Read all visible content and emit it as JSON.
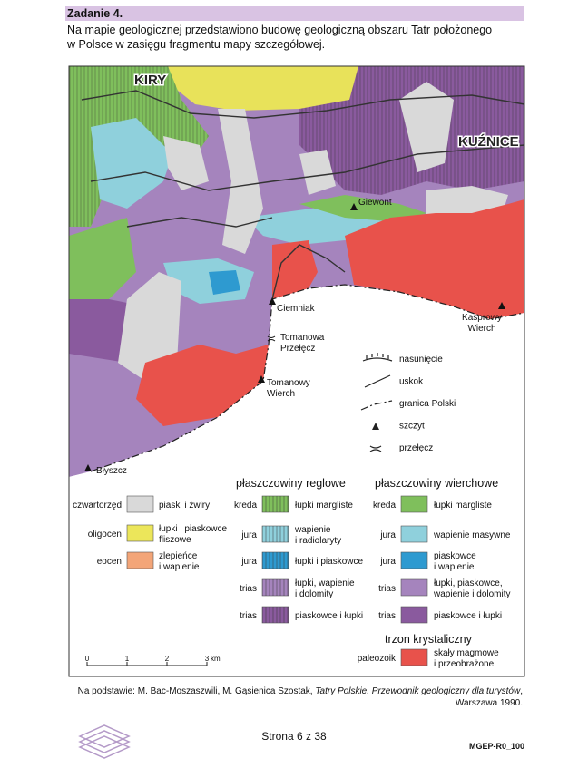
{
  "header": {
    "title": "Zadanie 4.",
    "intro": [
      "Na mapie geologicznej przedstawiono budowę geologiczną obszaru Tatr położonego",
      "w Polsce w zasięgu fragmentu mapy szczegółowej."
    ]
  },
  "map": {
    "places": [
      [
        "KIRY"
      ],
      [
        "KUŹNICE"
      ],
      [
        "Giewont"
      ],
      [
        "Ciemniak"
      ],
      [
        "Kasprowy",
        "Wierch"
      ],
      [
        "Tomanowa",
        "Przełęcz"
      ],
      [
        "Tomanowy",
        "Wierch"
      ],
      [
        "Błyszcz"
      ]
    ],
    "symbols": [
      "nasunięcie",
      "uskok",
      "granica Polski",
      "szczyt",
      "przełęcz"
    ],
    "scale": {
      "ticks": [
        "0",
        "1",
        "2",
        "3"
      ],
      "unit": "km"
    }
  },
  "legend": {
    "deposits": [
      {
        "age": "czwartorzęd",
        "text": [
          "piaski i żwiry"
        ]
      },
      {
        "age": "oligocen",
        "text": [
          "łupki i piaskowce",
          "fliszowe"
        ]
      },
      {
        "age": "eocen",
        "text": [
          "zlepieńce",
          "i wapienie"
        ]
      }
    ],
    "reglowe": {
      "title": "płaszczowiny reglowe",
      "rows": [
        {
          "age": "kreda",
          "text": [
            "łupki margliste"
          ]
        },
        {
          "age": "jura",
          "text": [
            "wapienie",
            "i radiolaryty"
          ]
        },
        {
          "age": "jura",
          "text": [
            "łupki i piaskowce"
          ]
        },
        {
          "age": "trias",
          "text": [
            "łupki, wapienie",
            "i dolomity"
          ]
        },
        {
          "age": "trias",
          "text": [
            "piaskowce i łupki"
          ]
        }
      ]
    },
    "wierchowe": {
      "title": "płaszczowiny wierchowe",
      "rows": [
        {
          "age": "kreda",
          "text": [
            "łupki margliste"
          ]
        },
        {
          "age": "jura",
          "text": [
            "wapienie masywne"
          ]
        },
        {
          "age": "jura",
          "text": [
            "piaskowce",
            "i wapienie"
          ]
        },
        {
          "age": "trias",
          "text": [
            "łupki, piaskowce,",
            "wapienie i dolomity"
          ]
        },
        {
          "age": "trias",
          "text": [
            "piaskowce i łupki"
          ]
        }
      ]
    },
    "trzon": {
      "title": "trzon krystaliczny",
      "rows": [
        {
          "age": "paleozoik",
          "text": [
            "skały magmowe",
            "i przeobrażone"
          ]
        }
      ]
    }
  },
  "source": {
    "text": "Na podstawie: M. Bac-Moszaszwili, M. Gąsienica Szostak, ",
    "title": "Tatry Polskie. Przewodnik geologiczny dla turystów",
    "after": ",",
    "place": "Warszawa 1990."
  },
  "footer": {
    "page": "Strona 6 z 38",
    "code": "MGEP-R0_100"
  }
}
